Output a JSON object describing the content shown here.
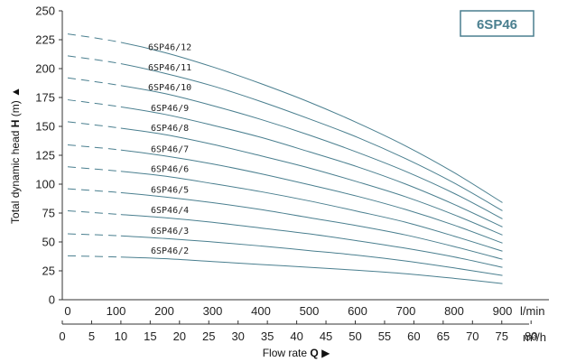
{
  "chart_data": {
    "type": "line",
    "title": "",
    "badge": "6SP46",
    "ylabel_prefix": "Total dynamic head ",
    "ylabel_bold": "H",
    "ylabel_suffix": " (m) ▲",
    "xlabel_prefix": "Flow rate ",
    "xlabel_bold": "Q",
    "xlabel_suffix": " ▶",
    "x_unit_top": "l/min",
    "x_unit_bottom": "m³/h",
    "ylim": [
      0,
      250
    ],
    "y_ticks": [
      0,
      25,
      50,
      75,
      100,
      125,
      150,
      175,
      200,
      225,
      250
    ],
    "xlim_lmin": [
      0,
      1000
    ],
    "x_ticks_lmin": [
      0,
      100,
      200,
      300,
      400,
      500,
      600,
      700,
      800,
      900
    ],
    "x_ticks_m3h": [
      0,
      5,
      10,
      15,
      20,
      25,
      30,
      35,
      40,
      45,
      50,
      55,
      60,
      65,
      70,
      75,
      80
    ],
    "dashed_until_lmin": 110,
    "line_color": "#4a7f8f",
    "grid": false,
    "series": [
      {
        "name": "6SP46/2",
        "x": [
          0,
          100,
          200,
          300,
          400,
          500,
          600,
          700,
          800,
          900
        ],
        "y": [
          38,
          37,
          35.5,
          33,
          30.5,
          28,
          25.5,
          22.5,
          18.5,
          14
        ]
      },
      {
        "name": "6SP46/3",
        "x": [
          0,
          100,
          200,
          300,
          400,
          500,
          600,
          700,
          800,
          900
        ],
        "y": [
          57,
          55.5,
          53,
          50,
          46.5,
          42.5,
          38.5,
          33.5,
          27.5,
          21
        ]
      },
      {
        "name": "6SP46/4",
        "x": [
          0,
          100,
          200,
          300,
          400,
          500,
          600,
          700,
          800,
          900
        ],
        "y": [
          77,
          74,
          71,
          67,
          62,
          57,
          51,
          44.5,
          37,
          28
        ]
      },
      {
        "name": "6SP46/5",
        "x": [
          0,
          100,
          200,
          300,
          400,
          500,
          600,
          700,
          800,
          900
        ],
        "y": [
          96,
          93,
          89,
          84,
          78,
          71,
          64,
          56,
          46,
          35
        ]
      },
      {
        "name": "6SP46/6",
        "x": [
          0,
          100,
          200,
          300,
          400,
          500,
          600,
          700,
          800,
          900
        ],
        "y": [
          115,
          111.5,
          107,
          100.5,
          93.5,
          85.5,
          76.5,
          67,
          55,
          42
        ]
      },
      {
        "name": "6SP46/7",
        "x": [
          0,
          100,
          200,
          300,
          400,
          500,
          600,
          700,
          800,
          900
        ],
        "y": [
          134,
          130,
          124.5,
          117.5,
          109,
          99.5,
          89.5,
          78,
          64.5,
          49
        ]
      },
      {
        "name": "6SP46/8",
        "x": [
          0,
          100,
          200,
          300,
          400,
          500,
          600,
          700,
          800,
          900
        ],
        "y": [
          154,
          149,
          143,
          134.5,
          124.5,
          114,
          102,
          89,
          73.5,
          56
        ]
      },
      {
        "name": "6SP46/9",
        "x": [
          0,
          100,
          200,
          300,
          400,
          500,
          600,
          700,
          800,
          900
        ],
        "y": [
          173,
          167.5,
          160.5,
          151,
          140.5,
          128,
          115,
          100,
          82.5,
          63
        ]
      },
      {
        "name": "6SP46/10",
        "x": [
          0,
          100,
          200,
          300,
          400,
          500,
          600,
          700,
          800,
          900
        ],
        "y": [
          192,
          186,
          178.5,
          168,
          156,
          142.5,
          127.5,
          111,
          92,
          70
        ]
      },
      {
        "name": "6SP46/11",
        "x": [
          0,
          100,
          200,
          300,
          400,
          500,
          600,
          700,
          800,
          900
        ],
        "y": [
          211,
          205,
          196,
          185,
          171.5,
          156.5,
          140.5,
          122,
          101,
          77
        ]
      },
      {
        "name": "6SP46/12",
        "x": [
          0,
          100,
          200,
          300,
          400,
          500,
          600,
          700,
          800,
          900
        ],
        "y": [
          230,
          223.5,
          214,
          201.5,
          187,
          171,
          153,
          133,
          110,
          84
        ]
      }
    ]
  }
}
